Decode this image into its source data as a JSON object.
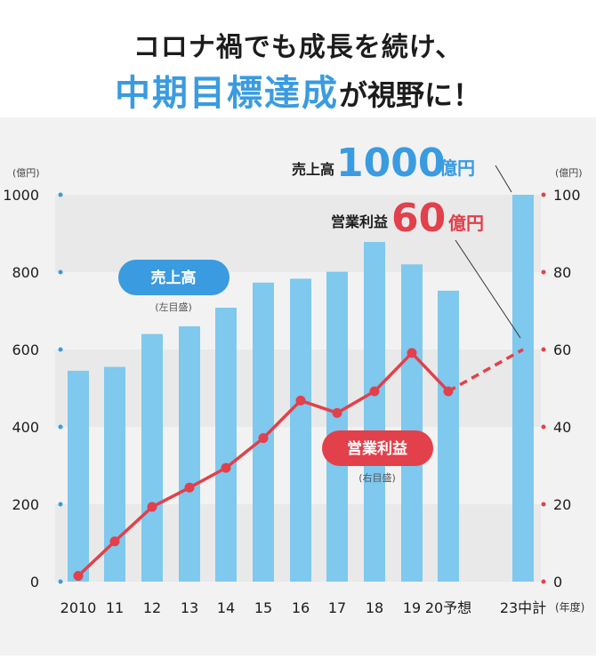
{
  "headline": {
    "line1": "コロナ禍でも成長を続け、",
    "line2_accent": "中期目標達成",
    "line2_rest": "が視野に！"
  },
  "chart_data": {
    "type": "bar+line",
    "categories": [
      "2010",
      "11",
      "12",
      "13",
      "14",
      "15",
      "16",
      "17",
      "18",
      "19",
      "20予想",
      "23中計"
    ],
    "x_unit": "(年度)",
    "left_axis": {
      "unit": "(億円)",
      "ylim": [
        0,
        1000
      ],
      "ticks": [
        0,
        200,
        400,
        600,
        800,
        1000
      ]
    },
    "right_axis": {
      "unit": "(億円)",
      "ylim": [
        0,
        100
      ],
      "ticks": [
        0,
        20,
        40,
        60,
        80,
        100
      ]
    },
    "bar_series": {
      "name": "売上高",
      "axis_note": "(左目盛)",
      "color": "#7fc8ee",
      "values": [
        545,
        555,
        640,
        660,
        708,
        773,
        783,
        801,
        878,
        820,
        752,
        1000
      ]
    },
    "line_series": {
      "name": "営業利益",
      "axis_note": "(右目盛)",
      "color": "#e2404b",
      "values": [
        1.5,
        10.4,
        19.3,
        24.3,
        29.4,
        37.1,
        46.8,
        43.6,
        49.2,
        59.1,
        49.2,
        60
      ],
      "dashed_from_index": 10
    },
    "targets": [
      {
        "label": "売上高",
        "value": "1000",
        "unit": "億円",
        "color": "#3a9be0"
      },
      {
        "label": "営業利益",
        "value": "60",
        "unit": "億円",
        "color": "#e2404b"
      }
    ],
    "grid": "horizontal bands"
  }
}
